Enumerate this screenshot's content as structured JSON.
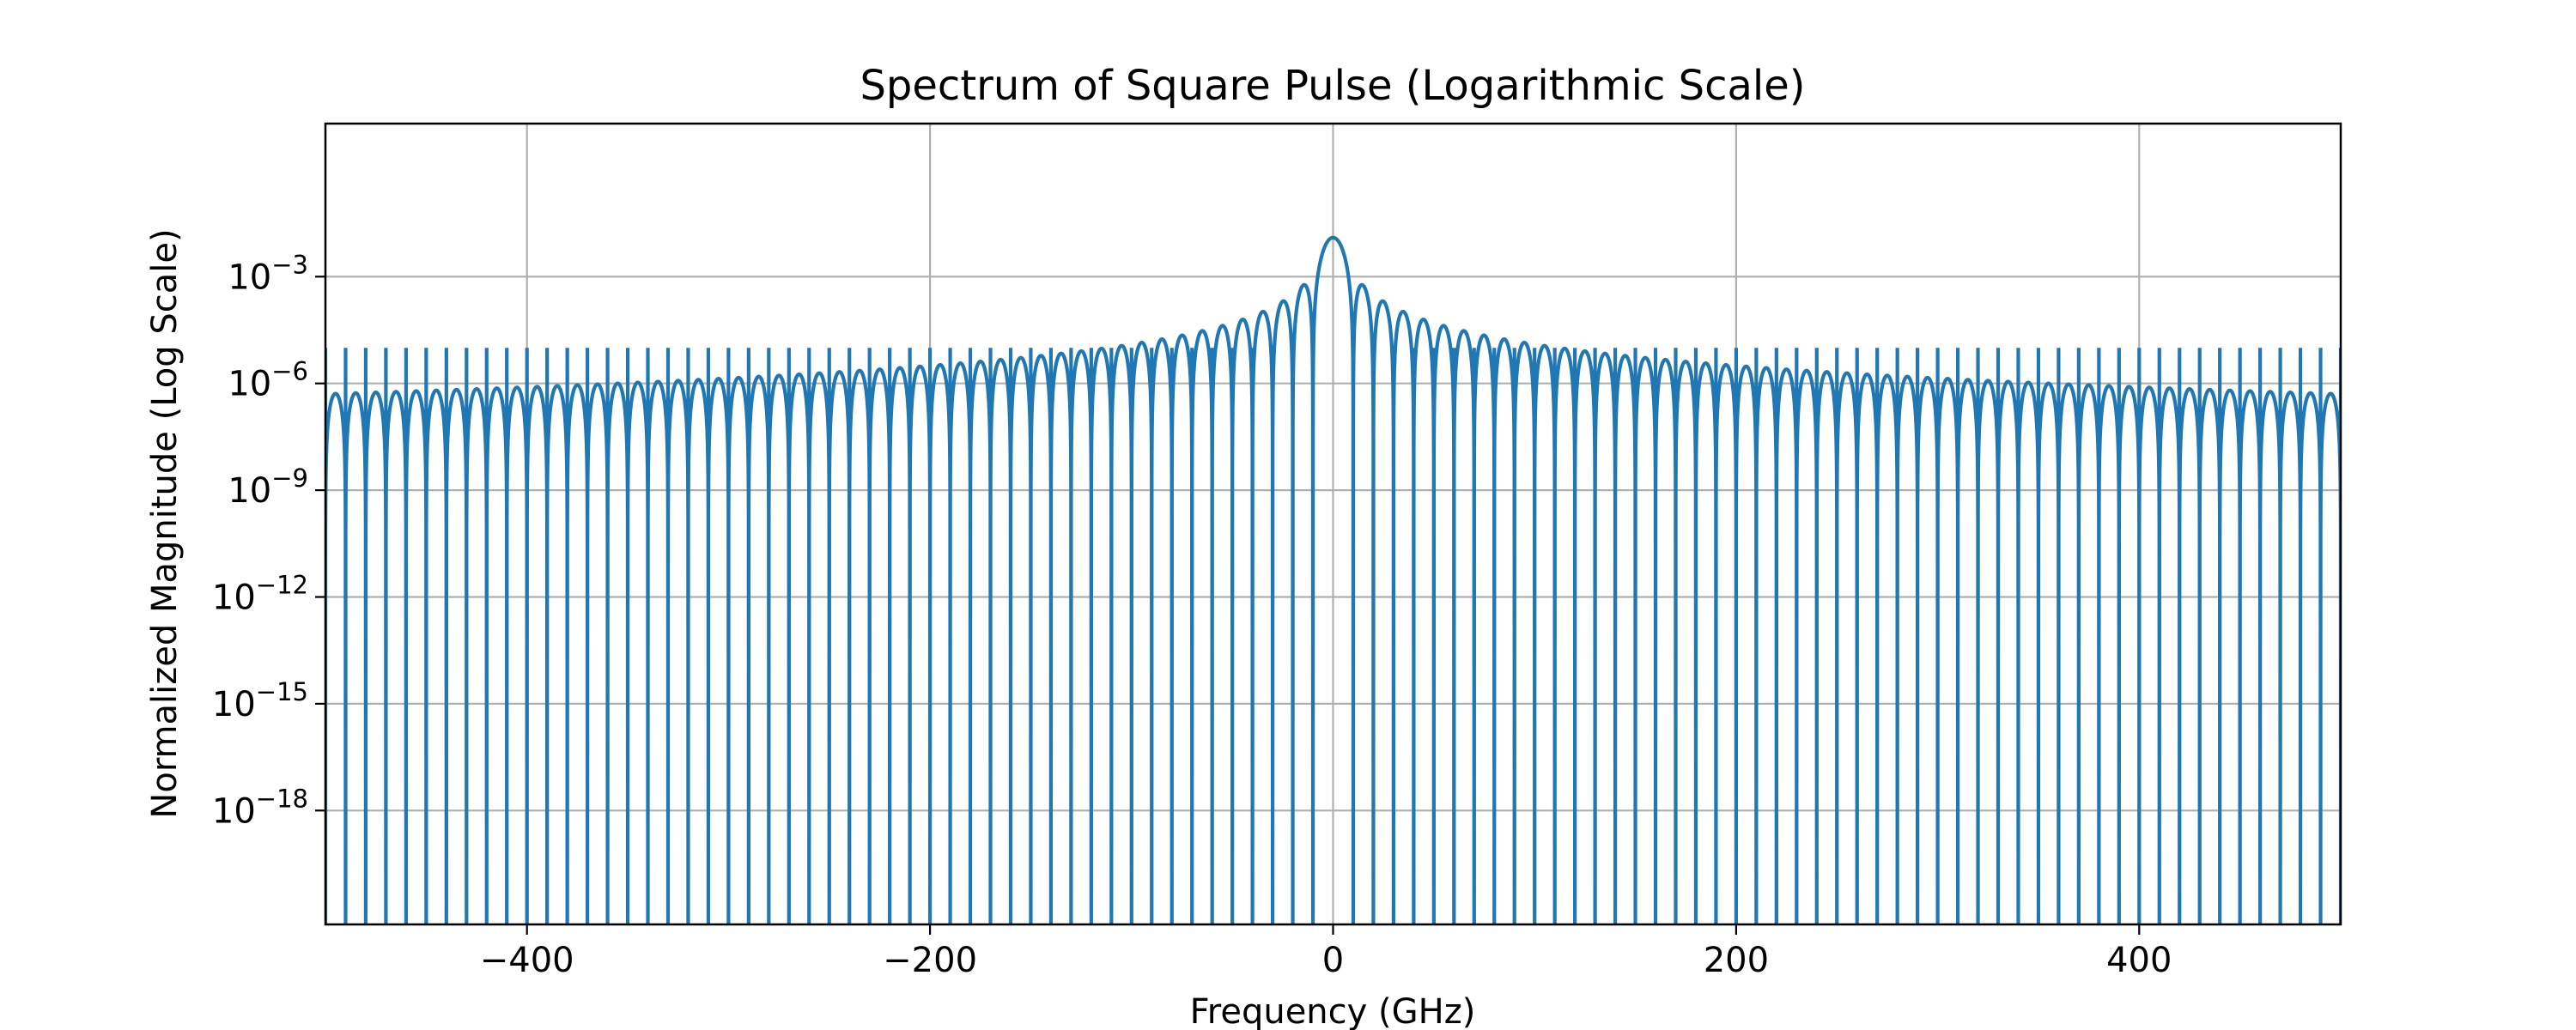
{
  "chart_data": {
    "type": "line",
    "title": "Spectrum of Square Pulse (Logarithmic Scale)",
    "xlabel": "Frequency (GHz)",
    "ylabel": "Normalized Magnitude (Log Scale)",
    "xlim": [
      -500,
      500
    ],
    "y_scale": "log",
    "ylim_log10": [
      -21.2,
      1.3
    ],
    "grid": true,
    "line_color": "#1f77b4",
    "x_ticks": [
      {
        "value": -400,
        "label": "−400"
      },
      {
        "value": -200,
        "label": "−200"
      },
      {
        "value": 0,
        "label": "0"
      },
      {
        "value": 200,
        "label": "200"
      },
      {
        "value": 400,
        "label": "400"
      }
    ],
    "y_ticks": [
      {
        "exp": -3,
        "base": "10",
        "sup": "−3"
      },
      {
        "exp": -6,
        "base": "10",
        "sup": "−6"
      },
      {
        "exp": -9,
        "base": "10",
        "sup": "−9"
      },
      {
        "exp": -12,
        "base": "10",
        "sup": "−12"
      },
      {
        "exp": -15,
        "base": "10",
        "sup": "−15"
      },
      {
        "exp": -18,
        "base": "10",
        "sup": "−18"
      }
    ],
    "series": [
      {
        "function": "sinc_squared",
        "peak": 0.0125,
        "null_spacing_ghz": 10,
        "sidelobe_level": 0.00013,
        "peak_frequency_ghz": 0
      }
    ]
  }
}
